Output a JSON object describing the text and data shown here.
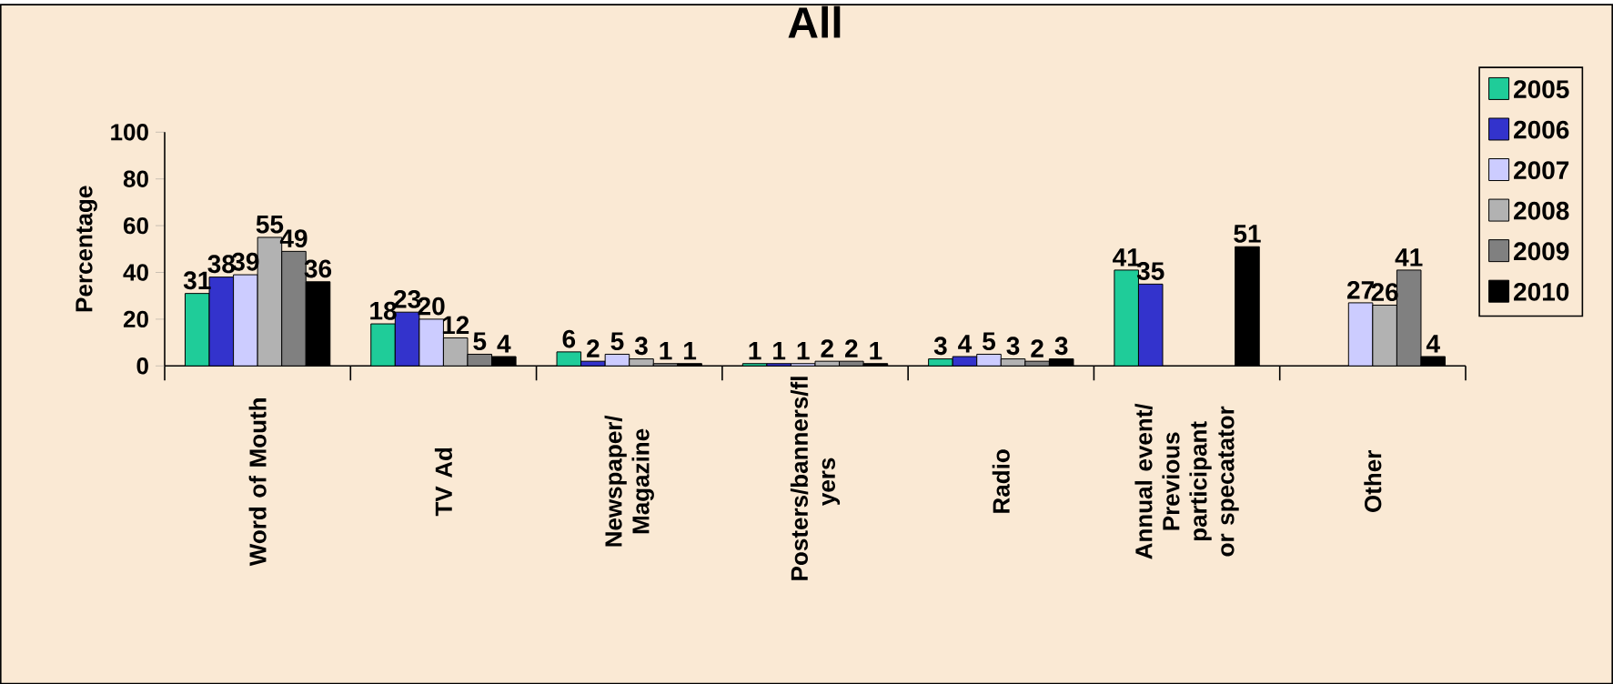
{
  "chart_data": {
    "type": "bar",
    "title": "All",
    "ylabel": "Percentage",
    "categories": [
      "Word of Mouth",
      "TV Ad",
      "Newspaper/ Magazine",
      "Posters/banners/fl yers",
      "Radio",
      "Annual event/ Previous participant or specatator",
      "Other"
    ],
    "series": [
      {
        "name": "2005",
        "color": "#1fcc99",
        "values": [
          31,
          18,
          6,
          1,
          3,
          41,
          null
        ]
      },
      {
        "name": "2006",
        "color": "#3333cc",
        "values": [
          38,
          23,
          2,
          1,
          4,
          35,
          null
        ]
      },
      {
        "name": "2007",
        "color": "#ccccff",
        "values": [
          39,
          20,
          5,
          1,
          5,
          null,
          27
        ]
      },
      {
        "name": "2008",
        "color": "#b2b2b2",
        "values": [
          55,
          12,
          3,
          2,
          3,
          null,
          26
        ]
      },
      {
        "name": "2009",
        "color": "#808080",
        "values": [
          49,
          5,
          1,
          2,
          2,
          null,
          41
        ]
      },
      {
        "name": "2010",
        "color": "#000000",
        "values": [
          36,
          4,
          1,
          1,
          3,
          51,
          4
        ]
      }
    ],
    "ylim": [
      0,
      100
    ],
    "yticks": [
      0,
      20,
      40,
      60,
      80,
      100
    ],
    "data_labels": true,
    "legend": "right",
    "grid": false
  }
}
